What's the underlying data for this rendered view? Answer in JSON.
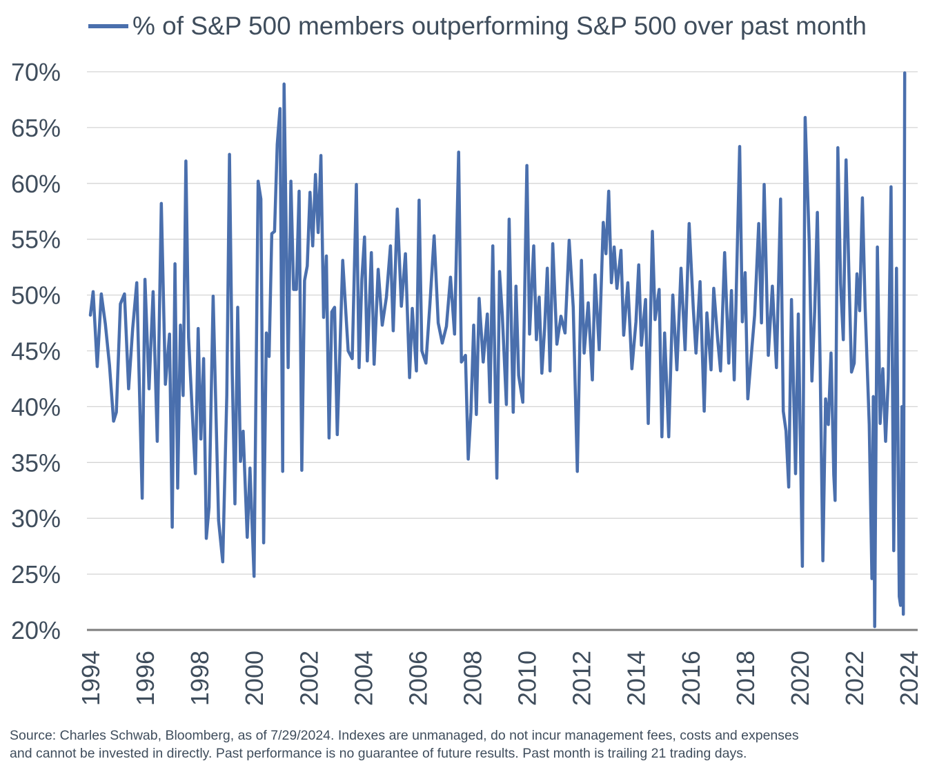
{
  "chart_data": {
    "type": "line",
    "title": "",
    "xlabel": "",
    "ylabel": "",
    "legend_position": "top",
    "grid": true,
    "ylim": [
      20,
      70
    ],
    "y_ticks": [
      "70%",
      "65%",
      "60%",
      "55%",
      "50%",
      "45%",
      "40%",
      "35%",
      "30%",
      "25%",
      "20%"
    ],
    "x_ticks": [
      "1994",
      "1996",
      "1998",
      "2000",
      "2002",
      "2004",
      "2006",
      "2008",
      "2010",
      "2012",
      "2014",
      "2016",
      "2018",
      "2020",
      "2022",
      "2024"
    ],
    "series": [
      {
        "name": "% of S&P 500 members outperforming S&P 500 over past month",
        "color": "#4a6fad",
        "points": [
          [
            1994.0,
            48.2
          ],
          [
            1994.1,
            50.3
          ],
          [
            1994.25,
            43.6
          ],
          [
            1994.4,
            50.1
          ],
          [
            1994.55,
            47.4
          ],
          [
            1994.7,
            43.7
          ],
          [
            1994.85,
            38.7
          ],
          [
            1994.95,
            39.5
          ],
          [
            1995.1,
            49.2
          ],
          [
            1995.25,
            50.1
          ],
          [
            1995.4,
            41.6
          ],
          [
            1995.55,
            47.0
          ],
          [
            1995.7,
            51.1
          ],
          [
            1995.9,
            31.8
          ],
          [
            1996.0,
            51.4
          ],
          [
            1996.15,
            41.6
          ],
          [
            1996.3,
            50.3
          ],
          [
            1996.45,
            36.9
          ],
          [
            1996.6,
            58.2
          ],
          [
            1996.75,
            42.0
          ],
          [
            1996.9,
            46.5
          ],
          [
            1997.0,
            29.2
          ],
          [
            1997.1,
            52.8
          ],
          [
            1997.2,
            32.7
          ],
          [
            1997.3,
            47.3
          ],
          [
            1997.4,
            41.0
          ],
          [
            1997.5,
            62.0
          ],
          [
            1997.6,
            46.2
          ],
          [
            1997.75,
            38.7
          ],
          [
            1997.85,
            34.0
          ],
          [
            1997.95,
            47.0
          ],
          [
            1998.05,
            37.1
          ],
          [
            1998.15,
            44.3
          ],
          [
            1998.25,
            28.2
          ],
          [
            1998.35,
            31.0
          ],
          [
            1998.5,
            49.9
          ],
          [
            1998.7,
            29.8
          ],
          [
            1998.85,
            26.1
          ],
          [
            1999.0,
            41.0
          ],
          [
            1999.1,
            62.6
          ],
          [
            1999.2,
            43.0
          ],
          [
            1999.3,
            31.3
          ],
          [
            1999.4,
            48.9
          ],
          [
            1999.5,
            35.1
          ],
          [
            1999.6,
            37.8
          ],
          [
            1999.75,
            28.3
          ],
          [
            1999.85,
            34.5
          ],
          [
            2000.0,
            24.8
          ],
          [
            2000.15,
            60.2
          ],
          [
            2000.25,
            58.6
          ],
          [
            2000.35,
            27.8
          ],
          [
            2000.45,
            46.6
          ],
          [
            2000.55,
            44.5
          ],
          [
            2000.65,
            55.5
          ],
          [
            2000.75,
            55.7
          ],
          [
            2000.85,
            63.5
          ],
          [
            2000.95,
            66.7
          ],
          [
            2001.05,
            34.2
          ],
          [
            2001.1,
            68.9
          ],
          [
            2001.25,
            43.5
          ],
          [
            2001.35,
            60.2
          ],
          [
            2001.45,
            50.5
          ],
          [
            2001.55,
            50.5
          ],
          [
            2001.65,
            59.3
          ],
          [
            2001.75,
            34.3
          ],
          [
            2001.85,
            51.3
          ],
          [
            2001.95,
            52.6
          ],
          [
            2002.05,
            59.2
          ],
          [
            2002.15,
            54.4
          ],
          [
            2002.25,
            60.8
          ],
          [
            2002.35,
            55.6
          ],
          [
            2002.45,
            62.5
          ],
          [
            2002.55,
            48.0
          ],
          [
            2002.65,
            53.5
          ],
          [
            2002.75,
            37.2
          ],
          [
            2002.85,
            48.5
          ],
          [
            2002.95,
            48.9
          ],
          [
            2003.05,
            37.5
          ],
          [
            2003.25,
            53.1
          ],
          [
            2003.45,
            45.0
          ],
          [
            2003.6,
            44.3
          ],
          [
            2003.75,
            59.9
          ],
          [
            2003.85,
            43.5
          ],
          [
            2003.95,
            51.4
          ],
          [
            2004.05,
            55.2
          ],
          [
            2004.15,
            44.1
          ],
          [
            2004.3,
            53.8
          ],
          [
            2004.4,
            43.8
          ],
          [
            2004.55,
            52.3
          ],
          [
            2004.7,
            47.3
          ],
          [
            2004.85,
            49.8
          ],
          [
            2005.0,
            54.4
          ],
          [
            2005.1,
            46.8
          ],
          [
            2005.25,
            57.7
          ],
          [
            2005.4,
            49.0
          ],
          [
            2005.55,
            53.7
          ],
          [
            2005.7,
            42.6
          ],
          [
            2005.8,
            48.8
          ],
          [
            2005.95,
            43.2
          ],
          [
            2006.05,
            58.5
          ],
          [
            2006.15,
            45.0
          ],
          [
            2006.3,
            43.9
          ],
          [
            2006.45,
            49.3
          ],
          [
            2006.6,
            55.3
          ],
          [
            2006.75,
            47.5
          ],
          [
            2006.9,
            45.7
          ],
          [
            2007.05,
            47.2
          ],
          [
            2007.2,
            51.6
          ],
          [
            2007.35,
            46.5
          ],
          [
            2007.5,
            62.8
          ],
          [
            2007.6,
            44.0
          ],
          [
            2007.75,
            44.6
          ],
          [
            2007.85,
            35.3
          ],
          [
            2007.95,
            39.5
          ],
          [
            2008.05,
            47.3
          ],
          [
            2008.15,
            39.3
          ],
          [
            2008.25,
            49.7
          ],
          [
            2008.4,
            44.0
          ],
          [
            2008.55,
            48.3
          ],
          [
            2008.65,
            40.4
          ],
          [
            2008.75,
            54.4
          ],
          [
            2008.9,
            33.6
          ],
          [
            2009.0,
            52.1
          ],
          [
            2009.1,
            48.2
          ],
          [
            2009.25,
            40.2
          ],
          [
            2009.35,
            56.8
          ],
          [
            2009.5,
            39.5
          ],
          [
            2009.6,
            50.8
          ],
          [
            2009.7,
            42.8
          ],
          [
            2009.85,
            40.4
          ],
          [
            2010.0,
            61.6
          ],
          [
            2010.1,
            46.5
          ],
          [
            2010.25,
            54.4
          ],
          [
            2010.35,
            46.0
          ],
          [
            2010.45,
            49.8
          ],
          [
            2010.55,
            43.0
          ],
          [
            2010.65,
            47.0
          ],
          [
            2010.75,
            52.4
          ],
          [
            2010.85,
            43.2
          ],
          [
            2010.95,
            54.6
          ],
          [
            2011.1,
            45.6
          ],
          [
            2011.25,
            48.1
          ],
          [
            2011.4,
            46.6
          ],
          [
            2011.55,
            54.9
          ],
          [
            2011.7,
            48.9
          ],
          [
            2011.85,
            34.2
          ],
          [
            2012.0,
            53.1
          ],
          [
            2012.1,
            44.8
          ],
          [
            2012.25,
            49.3
          ],
          [
            2012.4,
            42.4
          ],
          [
            2012.5,
            51.8
          ],
          [
            2012.65,
            45.1
          ],
          [
            2012.8,
            56.5
          ],
          [
            2012.9,
            53.7
          ],
          [
            2013.0,
            59.3
          ],
          [
            2013.1,
            51.1
          ],
          [
            2013.2,
            54.3
          ],
          [
            2013.3,
            50.6
          ],
          [
            2013.45,
            54.0
          ],
          [
            2013.55,
            46.4
          ],
          [
            2013.7,
            51.1
          ],
          [
            2013.85,
            43.4
          ],
          [
            2014.0,
            47.6
          ],
          [
            2014.1,
            52.7
          ],
          [
            2014.2,
            45.5
          ],
          [
            2014.35,
            49.6
          ],
          [
            2014.45,
            38.5
          ],
          [
            2014.6,
            55.7
          ],
          [
            2014.7,
            47.8
          ],
          [
            2014.85,
            50.5
          ],
          [
            2014.95,
            37.3
          ],
          [
            2015.05,
            46.6
          ],
          [
            2015.2,
            37.3
          ],
          [
            2015.35,
            50.0
          ],
          [
            2015.5,
            43.3
          ],
          [
            2015.65,
            52.4
          ],
          [
            2015.8,
            45.1
          ],
          [
            2015.95,
            56.4
          ],
          [
            2016.1,
            48.8
          ],
          [
            2016.2,
            44.8
          ],
          [
            2016.35,
            51.2
          ],
          [
            2016.5,
            39.6
          ],
          [
            2016.6,
            48.4
          ],
          [
            2016.75,
            43.3
          ],
          [
            2016.85,
            50.6
          ],
          [
            2017.0,
            45.9
          ],
          [
            2017.1,
            43.2
          ],
          [
            2017.25,
            53.8
          ],
          [
            2017.4,
            43.9
          ],
          [
            2017.5,
            50.4
          ],
          [
            2017.6,
            42.4
          ],
          [
            2017.8,
            63.3
          ],
          [
            2017.9,
            47.6
          ],
          [
            2018.0,
            52.0
          ],
          [
            2018.1,
            40.7
          ],
          [
            2018.25,
            45.3
          ],
          [
            2018.35,
            48.2
          ],
          [
            2018.5,
            56.4
          ],
          [
            2018.6,
            47.5
          ],
          [
            2018.7,
            59.9
          ],
          [
            2018.85,
            44.6
          ],
          [
            2019.0,
            50.8
          ],
          [
            2019.15,
            43.5
          ],
          [
            2019.3,
            58.6
          ],
          [
            2019.4,
            39.6
          ],
          [
            2019.5,
            37.8
          ],
          [
            2019.6,
            32.8
          ],
          [
            2019.7,
            49.6
          ],
          [
            2019.85,
            34.0
          ],
          [
            2019.95,
            48.3
          ],
          [
            2020.1,
            25.7
          ],
          [
            2020.2,
            65.9
          ],
          [
            2020.35,
            54.8
          ],
          [
            2020.45,
            42.3
          ],
          [
            2020.55,
            48.5
          ],
          [
            2020.65,
            57.4
          ],
          [
            2020.75,
            44.0
          ],
          [
            2020.85,
            26.2
          ],
          [
            2020.95,
            40.7
          ],
          [
            2021.05,
            38.4
          ],
          [
            2021.15,
            44.8
          ],
          [
            2021.25,
            33.9
          ],
          [
            2021.3,
            31.6
          ],
          [
            2021.4,
            63.2
          ],
          [
            2021.5,
            51.0
          ],
          [
            2021.6,
            46.0
          ],
          [
            2021.7,
            62.1
          ],
          [
            2021.8,
            52.5
          ],
          [
            2021.9,
            43.1
          ],
          [
            2022.0,
            43.9
          ],
          [
            2022.1,
            51.9
          ],
          [
            2022.2,
            48.6
          ],
          [
            2022.3,
            58.7
          ],
          [
            2022.4,
            49.0
          ],
          [
            2022.45,
            45.5
          ],
          [
            2022.55,
            38.4
          ],
          [
            2022.65,
            24.6
          ],
          [
            2022.7,
            40.9
          ],
          [
            2022.75,
            20.3
          ],
          [
            2022.85,
            54.3
          ],
          [
            2022.95,
            38.5
          ],
          [
            2023.05,
            43.4
          ],
          [
            2023.15,
            36.9
          ],
          [
            2023.25,
            42.5
          ],
          [
            2023.35,
            59.7
          ],
          [
            2023.45,
            27.1
          ],
          [
            2023.55,
            52.4
          ],
          [
            2023.65,
            23.0
          ],
          [
            2023.7,
            22.2
          ],
          [
            2023.75,
            40.0
          ],
          [
            2023.8,
            21.4
          ],
          [
            2023.85,
            69.9
          ]
        ]
      }
    ]
  },
  "footnote": {
    "line1": "Source: Charles Schwab, Bloomberg, as of 7/29/2024. Indexes are unmanaged, do not incur management fees, costs and expenses",
    "line2": "and cannot be invested in directly. Past performance is no guarantee of future results. Past month is trailing 21 trading days."
  }
}
